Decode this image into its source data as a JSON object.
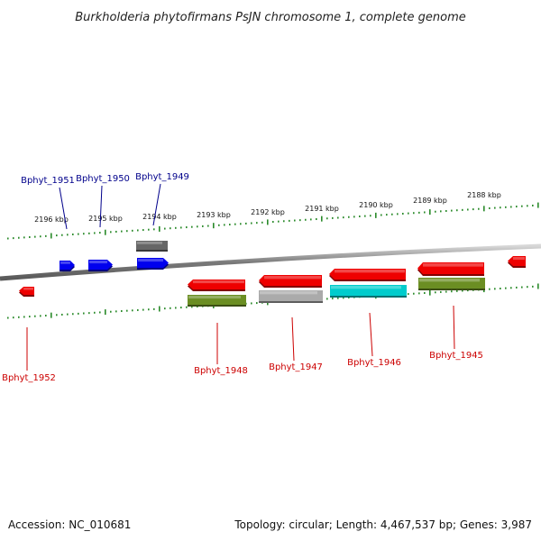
{
  "title": "Burkholderia phytofirmans PsJN chromosome 1, complete genome",
  "footer": {
    "accession": "Accession: NC_010681",
    "stats": "Topology: circular; Length: 4,467,537 bp; Genes: 3,987"
  },
  "colors": {
    "backbone": "#8a8a8a",
    "ticks": "#2a8a2a",
    "label_top": "#00008b",
    "label_bottom": "#cc0000",
    "red": "#ee0000",
    "blue": "#0000ee",
    "olive": "#6b8e23",
    "gray": "#aaaaaa",
    "darkgray": "#666666",
    "cyan": "#00cccc"
  },
  "ticks": [
    "2196 kbp",
    "2195 kbp",
    "2194 kbp",
    "2193 kbp",
    "2192 kbp",
    "2191 kbp",
    "2190 kbp",
    "2189 kbp",
    "2188 kbp"
  ],
  "genes": [
    {
      "name": "Bphyt_1952",
      "strand": "reverse",
      "color": "red"
    },
    {
      "name": "Bphyt_1951",
      "strand": "forward",
      "color": "blue"
    },
    {
      "name": "Bphyt_1950",
      "strand": "forward",
      "color": "blue"
    },
    {
      "name": "Bphyt_1949",
      "strand": "forward",
      "color": "blue"
    },
    {
      "name": "Bphyt_1948",
      "strand": "reverse",
      "color": "red"
    },
    {
      "name": "Bphyt_1947",
      "strand": "reverse",
      "color": "red"
    },
    {
      "name": "Bphyt_1946",
      "strand": "reverse",
      "color": "red"
    },
    {
      "name": "Bphyt_1945",
      "strand": "reverse",
      "color": "red"
    }
  ]
}
